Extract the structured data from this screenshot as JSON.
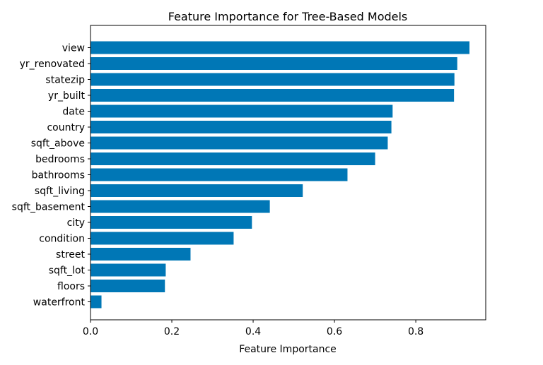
{
  "chart_data": {
    "type": "bar",
    "orientation": "horizontal",
    "title": "Feature Importance for Tree-Based Models",
    "xlabel": "Feature Importance",
    "ylabel": "",
    "xlim": [
      0,
      0.972
    ],
    "xticks": [
      0.0,
      0.2,
      0.4,
      0.6,
      0.8
    ],
    "xtick_labels": [
      "0.0",
      "0.2",
      "0.4",
      "0.6",
      "0.8"
    ],
    "grid": false,
    "legend": false,
    "bar_color": "#0077b6",
    "categories": [
      "view",
      "yr_renovated",
      "statezip",
      "yr_built",
      "date",
      "country",
      "sqft_above",
      "bedrooms",
      "bathrooms",
      "sqft_living",
      "sqft_basement",
      "city",
      "condition",
      "street",
      "sqft_lot",
      "floors",
      "waterfront"
    ],
    "values": [
      0.932,
      0.902,
      0.895,
      0.894,
      0.743,
      0.74,
      0.731,
      0.7,
      0.632,
      0.522,
      0.441,
      0.397,
      0.352,
      0.246,
      0.185,
      0.183,
      0.027
    ]
  }
}
